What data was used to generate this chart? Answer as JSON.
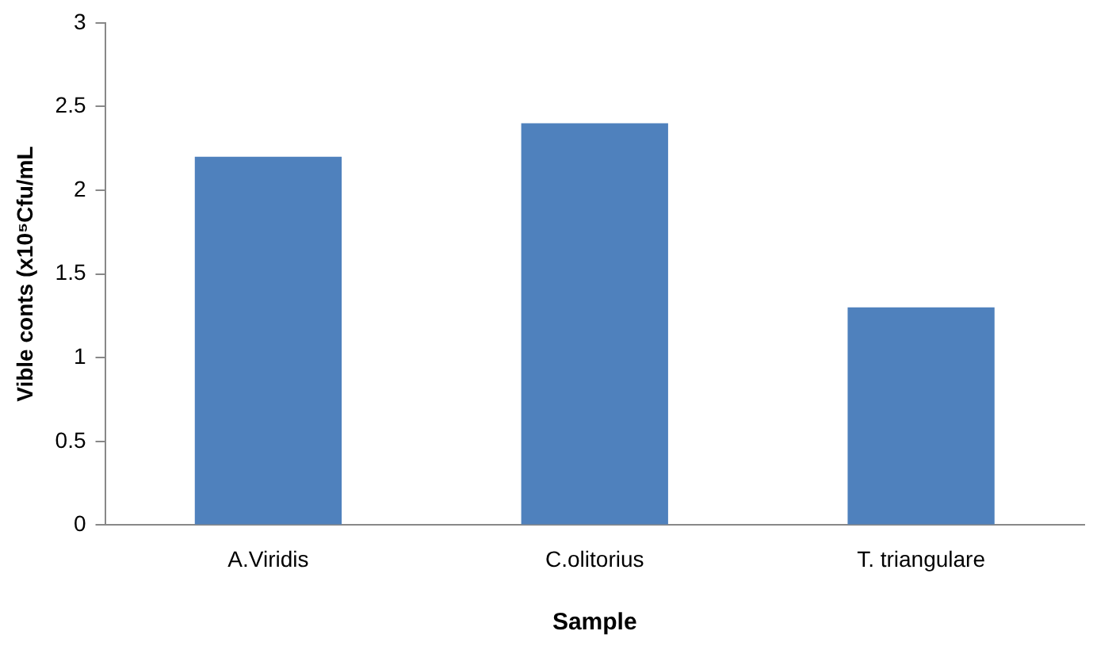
{
  "chart_data": {
    "type": "bar",
    "xlabel": "Sample",
    "ylabel": "Vible conts (x10⁵Cfu/mL",
    "categories": [
      "A.Viridis",
      "C.olitorius",
      "T. triangulare"
    ],
    "values": [
      2.2,
      2.4,
      1.3
    ],
    "color": "#4f81bd",
    "ylim": [
      0,
      3
    ],
    "yticks": [
      0,
      0.5,
      1,
      1.5,
      2,
      2.5,
      3
    ],
    "grid": false,
    "legend": false
  }
}
